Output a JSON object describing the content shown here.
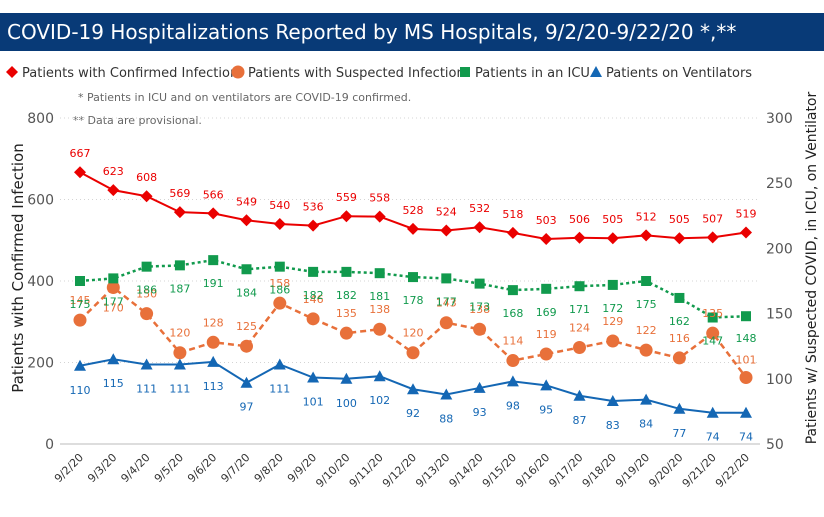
{
  "header": {
    "title": "COVID-19 Hospitalizations Reported by MS Hospitals, 9/2/20-9/22/20 *,**"
  },
  "notes": [
    "* Patients in ICU and on ventilators are COVID-19 confirmed.",
    "** Data are provisional."
  ],
  "chart_data": {
    "type": "line",
    "title": "COVID-19 Hospitalizations Reported by MS Hospitals, 9/2/20-9/22/20 *,**",
    "categories": [
      "9/2/20",
      "9/3/20",
      "9/4/20",
      "9/5/20",
      "9/6/20",
      "9/7/20",
      "9/8/20",
      "9/9/20",
      "9/10/20",
      "9/11/20",
      "9/12/20",
      "9/13/20",
      "9/14/20",
      "9/15/20",
      "9/16/20",
      "9/17/20",
      "9/18/20",
      "9/19/20",
      "9/20/20",
      "9/21/20",
      "9/22/20"
    ],
    "ylabel": "Patients with Confirmed Infection",
    "y2label": "Patients w/ Suspected COVID, in ICU, on Ventilator",
    "ylim": [
      0,
      800
    ],
    "y_ticks": [
      0,
      200,
      400,
      600,
      800
    ],
    "y2lim": [
      50,
      300
    ],
    "y2_ticks": [
      50,
      100,
      150,
      200,
      250,
      300
    ],
    "grid": true,
    "legend_position": "top",
    "series": [
      {
        "name": "Patients with Confirmed Infection",
        "axis": "left",
        "color": "#ea0000",
        "marker": "diamond",
        "dashed": false,
        "values": [
          667,
          623,
          608,
          569,
          566,
          549,
          540,
          536,
          559,
          558,
          528,
          524,
          532,
          518,
          503,
          506,
          505,
          512,
          505,
          507,
          519
        ]
      },
      {
        "name": "Patients with Suspected Infection",
        "axis": "right",
        "color": "#e8703a",
        "marker": "circle",
        "dashed": true,
        "values": [
          145,
          170,
          150,
          120,
          128,
          125,
          158,
          146,
          135,
          138,
          120,
          143,
          138,
          114,
          119,
          124,
          129,
          122,
          116,
          135,
          101
        ]
      },
      {
        "name": "Patients in an ICU",
        "axis": "right",
        "color": "#119a4d",
        "marker": "square",
        "dashed": true,
        "values": [
          175,
          177,
          186,
          187,
          191,
          184,
          186,
          182,
          182,
          181,
          178,
          177,
          173,
          168,
          169,
          171,
          172,
          175,
          162,
          147,
          148
        ]
      },
      {
        "name": "Patients on Ventilators",
        "axis": "right",
        "color": "#1467b4",
        "marker": "triangle",
        "dashed": false,
        "values": [
          110,
          115,
          111,
          111,
          113,
          97,
          111,
          101,
          100,
          102,
          92,
          88,
          93,
          98,
          95,
          87,
          83,
          84,
          77,
          74,
          74
        ]
      }
    ]
  }
}
